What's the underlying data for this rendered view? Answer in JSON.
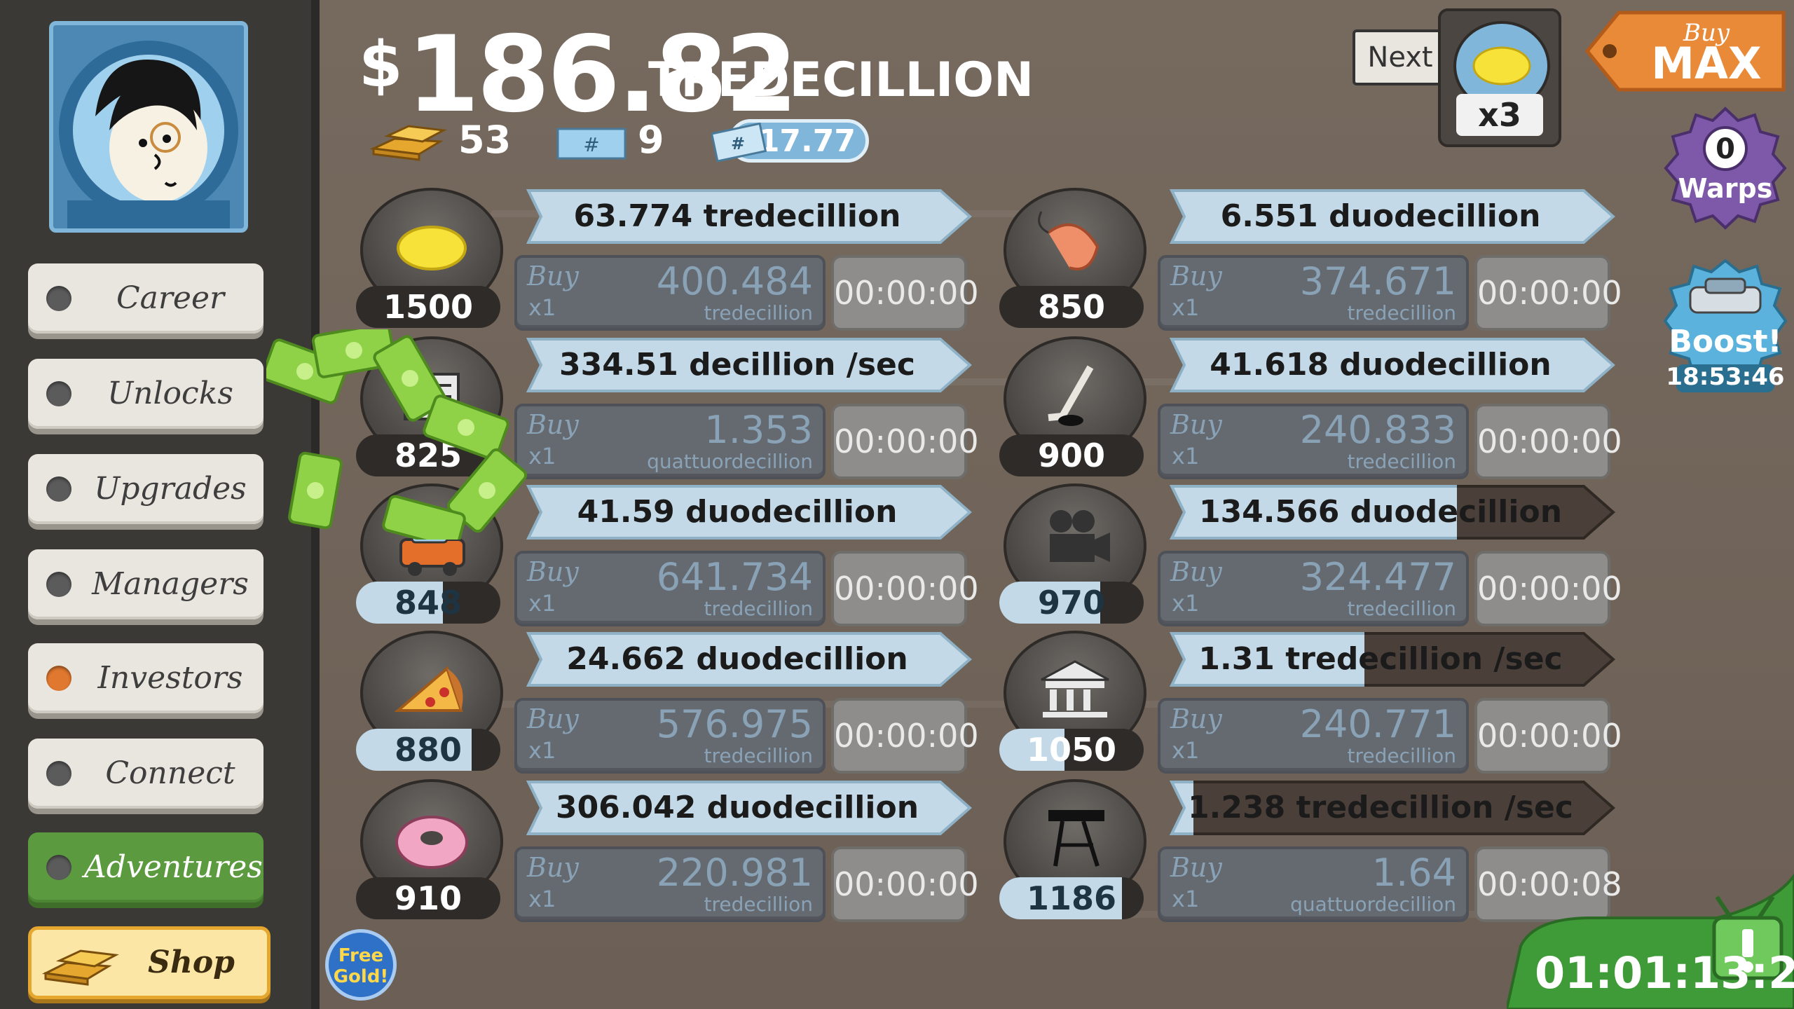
{
  "currency": {
    "symbol": "$",
    "amount": "186.82",
    "unit": "TREDECILLION"
  },
  "stats": {
    "gold": "53",
    "megabucks": "9",
    "multiplier": "x17.77"
  },
  "next_unlock": {
    "label": "Next",
    "icon": "lemon-icon",
    "count": "x3"
  },
  "buy_max": {
    "line1": "Buy",
    "line2": "MAX"
  },
  "warps": {
    "count": "0",
    "label": "Warps"
  },
  "boost": {
    "label": "Boost!",
    "timer": "18:53:46"
  },
  "sidebar": {
    "items": [
      {
        "label": "Career",
        "active": false
      },
      {
        "label": "Unlocks",
        "active": false
      },
      {
        "label": "Upgrades",
        "active": false
      },
      {
        "label": "Managers",
        "active": false
      },
      {
        "label": "Investors",
        "active": true
      },
      {
        "label": "Connect",
        "active": false
      },
      {
        "label": "Adventures",
        "active": false
      },
      {
        "label": "Shop",
        "active": false
      }
    ]
  },
  "free_gold": {
    "line1": "Free",
    "line2": "Gold!"
  },
  "event_timer": "01:01:13:2",
  "businesses": [
    {
      "icon": "lemon-icon",
      "level": "1500",
      "level_progress": 0.0,
      "rate": "63.774 tredecillion /sec",
      "rate_progress": 1.0,
      "buy_word": "Buy",
      "buy_qty": "x1",
      "cost": "400.484",
      "cost_unit": "tredecillion",
      "timer": "00:00:00"
    },
    {
      "icon": "newspaper-icon",
      "level": "825",
      "level_progress": 0.0,
      "rate": "334.51 decillion /sec",
      "rate_progress": 1.0,
      "buy_word": "Buy",
      "buy_qty": "x1",
      "cost": "1.353",
      "cost_unit": "quattuordecillion",
      "timer": "00:00:00"
    },
    {
      "icon": "car-wash-icon",
      "level": "848",
      "level_progress": 0.6,
      "rate": "41.59 duodecillion /sec",
      "rate_progress": 1.0,
      "buy_word": "Buy",
      "buy_qty": "x1",
      "cost": "641.734",
      "cost_unit": "tredecillion",
      "timer": "00:00:00"
    },
    {
      "icon": "pizza-icon",
      "level": "880",
      "level_progress": 0.8,
      "rate": "24.662 duodecillion /sec",
      "rate_progress": 1.0,
      "buy_word": "Buy",
      "buy_qty": "x1",
      "cost": "576.975",
      "cost_unit": "tredecillion",
      "timer": "00:00:00"
    },
    {
      "icon": "donut-icon",
      "level": "910",
      "level_progress": 0.0,
      "rate": "306.042 duodecillion /sec",
      "rate_progress": 1.0,
      "buy_word": "Buy",
      "buy_qty": "x1",
      "cost": "220.981",
      "cost_unit": "tredecillion",
      "timer": "00:00:00"
    },
    {
      "icon": "shrimp-icon",
      "level": "850",
      "level_progress": 0.0,
      "rate": "6.551 duodecillion /sec",
      "rate_progress": 1.0,
      "buy_word": "Buy",
      "buy_qty": "x1",
      "cost": "374.671",
      "cost_unit": "tredecillion",
      "timer": "00:00:00"
    },
    {
      "icon": "hockey-icon",
      "level": "900",
      "level_progress": 0.0,
      "rate": "41.618 duodecillion /sec",
      "rate_progress": 1.0,
      "buy_word": "Buy",
      "buy_qty": "x1",
      "cost": "240.833",
      "cost_unit": "tredecillion",
      "timer": "00:00:00"
    },
    {
      "icon": "movie-camera-icon",
      "level": "970",
      "level_progress": 0.7,
      "rate": "134.566 duodecillion /sec",
      "rate_progress": 0.65,
      "buy_word": "Buy",
      "buy_qty": "x1",
      "cost": "324.477",
      "cost_unit": "tredecillion",
      "timer": "00:00:00"
    },
    {
      "icon": "bank-icon",
      "level": "1050",
      "level_progress": 0.45,
      "rate": "1.31 tredecillion /sec",
      "rate_progress": 0.45,
      "buy_word": "Buy",
      "buy_qty": "x1",
      "cost": "240.771",
      "cost_unit": "tredecillion",
      "timer": "00:00:00"
    },
    {
      "icon": "oil-rig-icon",
      "level": "1186",
      "level_progress": 0.85,
      "rate": "1.238 tredecillion /sec",
      "rate_progress": 0.08,
      "buy_word": "Buy",
      "buy_qty": "x1",
      "cost": "1.64",
      "cost_unit": "quattuordecillion",
      "timer": "00:00:08"
    }
  ],
  "colors": {
    "bar_light": "#c3d9e7",
    "bar_dark": "#4b4039",
    "green_button": "#5b9a3e",
    "investor_dot": "#e0782f"
  }
}
